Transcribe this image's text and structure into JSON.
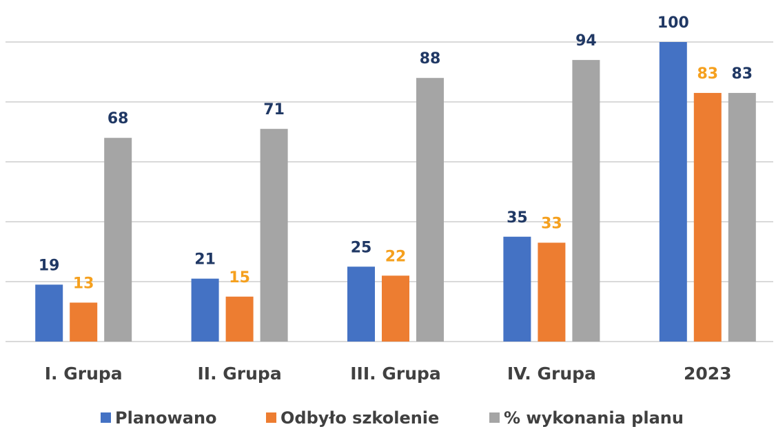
{
  "chart_data": {
    "type": "bar",
    "categories": [
      "I. Grupa",
      "II. Grupa",
      "III. Grupa",
      "IV. Grupa",
      "2023"
    ],
    "series": [
      {
        "name": "Planowano",
        "color": "#4472c4",
        "label_color": "#203864",
        "values": [
          19,
          21,
          25,
          35,
          100
        ]
      },
      {
        "name": "Odbyło szkolenie",
        "color": "#ed7d31",
        "label_color": "#f5a01e",
        "values": [
          13,
          15,
          22,
          33,
          83
        ]
      },
      {
        "name": "% wykonania planu",
        "color": "#a5a5a5",
        "label_color": "#203864",
        "values": [
          68,
          71,
          88,
          94,
          83
        ]
      }
    ],
    "ylim": [
      0,
      100
    ],
    "yticks": [
      0,
      20,
      40,
      60,
      80,
      100
    ],
    "grid": true,
    "legend": "bottom"
  }
}
